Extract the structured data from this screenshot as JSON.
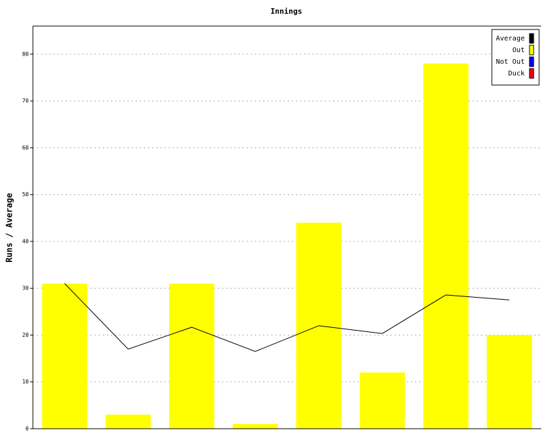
{
  "chart_data": {
    "type": "bar",
    "title": "Innings",
    "y_label": "Runs / Average",
    "categories": [
      null,
      null,
      null,
      null,
      null,
      null,
      null,
      null
    ],
    "series": [
      {
        "name": "Average",
        "color": "#000000",
        "type": "line",
        "values": [
          31,
          17,
          21.67,
          16.5,
          22,
          20.33,
          28.57,
          27.5
        ]
      },
      {
        "name": "Out",
        "color": "#ffff00",
        "type": "bar",
        "values": [
          31,
          3,
          31,
          1,
          44,
          12,
          78,
          20
        ]
      },
      {
        "name": "Not Out",
        "color": "#0000ff",
        "type": "bar",
        "values": [
          null,
          null,
          null,
          null,
          null,
          null,
          null,
          null
        ]
      },
      {
        "name": "Duck",
        "color": "#ff0000",
        "type": "bar",
        "values": [
          null,
          null,
          null,
          null,
          null,
          null,
          null,
          null
        ]
      }
    ],
    "ylim": [
      0,
      86
    ],
    "yticks": [
      0,
      10,
      20,
      30,
      40,
      50,
      60,
      70,
      80
    ],
    "grid": true,
    "legend": "top-right"
  }
}
